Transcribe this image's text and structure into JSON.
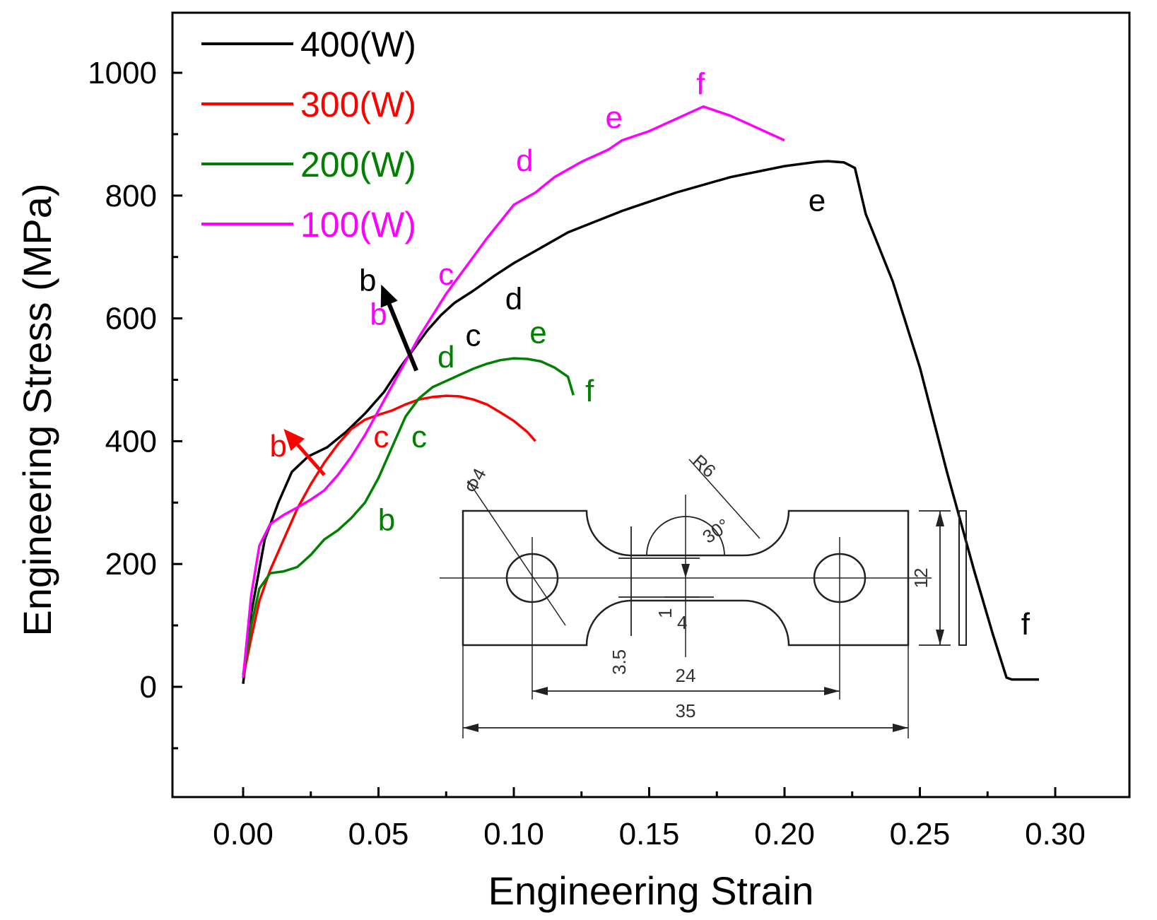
{
  "chart_data": {
    "type": "line",
    "title": "",
    "xlabel": "Engineering Strain",
    "ylabel": "Engineering Stress (MPa)",
    "xlim": [
      -0.025,
      0.325
    ],
    "ylim": [
      -200,
      1100
    ],
    "xticks": [
      0.0,
      0.05,
      0.1,
      0.15,
      0.2,
      0.25,
      0.3
    ],
    "xtick_labels": [
      "0.00",
      "0.05",
      "0.10",
      "0.15",
      "0.20",
      "0.25",
      "0.30"
    ],
    "yticks": [
      0,
      200,
      400,
      600,
      800,
      1000
    ],
    "ytick_labels": [
      "0",
      "200",
      "400",
      "600",
      "800",
      "1000"
    ],
    "grid": false,
    "legend": {
      "placement": "top-left"
    },
    "series": [
      {
        "name": "400(W)",
        "color": "#000000",
        "x": [
          0.0,
          0.003,
          0.008,
          0.013,
          0.018,
          0.024,
          0.031,
          0.038,
          0.045,
          0.052,
          0.058,
          0.063,
          0.068,
          0.073,
          0.078,
          0.085,
          0.093,
          0.1,
          0.11,
          0.12,
          0.14,
          0.16,
          0.18,
          0.2,
          0.212,
          0.216,
          0.222,
          0.226,
          0.23,
          0.24,
          0.25,
          0.26,
          0.27,
          0.277,
          0.282,
          0.284,
          0.29,
          0.294
        ],
        "y": [
          5,
          120,
          240,
          300,
          350,
          375,
          390,
          415,
          445,
          480,
          520,
          550,
          580,
          605,
          625,
          645,
          670,
          690,
          715,
          740,
          775,
          805,
          830,
          848,
          855,
          856,
          854,
          845,
          770,
          660,
          520,
          350,
          190,
          85,
          15,
          12,
          12,
          12
        ]
      },
      {
        "name": "300(W)",
        "color": "#ff0000",
        "x": [
          0.0,
          0.003,
          0.006,
          0.01,
          0.015,
          0.02,
          0.025,
          0.03,
          0.035,
          0.04,
          0.045,
          0.05,
          0.055,
          0.06,
          0.065,
          0.07,
          0.075,
          0.08,
          0.085,
          0.09,
          0.095,
          0.1,
          0.105,
          0.108
        ],
        "y": [
          15,
          80,
          140,
          190,
          240,
          290,
          330,
          365,
          395,
          420,
          435,
          443,
          450,
          460,
          468,
          472,
          474,
          473,
          468,
          460,
          447,
          433,
          415,
          400
        ]
      },
      {
        "name": "200(W)",
        "color": "#008000",
        "x": [
          0.0,
          0.003,
          0.006,
          0.01,
          0.015,
          0.02,
          0.025,
          0.03,
          0.035,
          0.04,
          0.045,
          0.05,
          0.055,
          0.06,
          0.065,
          0.07,
          0.075,
          0.08,
          0.085,
          0.09,
          0.095,
          0.1,
          0.105,
          0.11,
          0.115,
          0.12,
          0.122
        ],
        "y": [
          20,
          100,
          160,
          185,
          188,
          195,
          215,
          240,
          255,
          275,
          300,
          340,
          390,
          440,
          470,
          488,
          498,
          508,
          518,
          526,
          532,
          535,
          534,
          530,
          520,
          505,
          475
        ]
      },
      {
        "name": "100(W)",
        "color": "#ff00ff",
        "x": [
          0.0,
          0.003,
          0.006,
          0.01,
          0.015,
          0.02,
          0.025,
          0.03,
          0.035,
          0.04,
          0.045,
          0.05,
          0.055,
          0.06,
          0.065,
          0.07,
          0.075,
          0.08,
          0.09,
          0.1,
          0.108,
          0.115,
          0.125,
          0.135,
          0.14,
          0.15,
          0.16,
          0.17,
          0.18,
          0.19,
          0.2
        ],
        "y": [
          15,
          150,
          230,
          265,
          280,
          292,
          305,
          320,
          345,
          375,
          410,
          450,
          490,
          530,
          570,
          605,
          640,
          670,
          730,
          785,
          805,
          830,
          855,
          875,
          890,
          905,
          925,
          945,
          930,
          910,
          890
        ]
      }
    ],
    "annotations": [
      {
        "text": "b",
        "x": 0.046,
        "y": 645,
        "color": "#000000"
      },
      {
        "text": "c",
        "x": 0.085,
        "y": 555,
        "color": "#000000"
      },
      {
        "text": "d",
        "x": 0.1,
        "y": 615,
        "color": "#000000"
      },
      {
        "text": "e",
        "x": 0.212,
        "y": 775,
        "color": "#000000"
      },
      {
        "text": "f",
        "x": 0.289,
        "y": 85,
        "color": "#000000"
      },
      {
        "text": "b",
        "x": 0.013,
        "y": 375,
        "color": "#ff0000"
      },
      {
        "text": "c",
        "x": 0.051,
        "y": 390,
        "color": "#ff0000"
      },
      {
        "text": "b",
        "x": 0.053,
        "y": 255,
        "color": "#008000"
      },
      {
        "text": "c",
        "x": 0.065,
        "y": 390,
        "color": "#008000"
      },
      {
        "text": "d",
        "x": 0.075,
        "y": 520,
        "color": "#008000"
      },
      {
        "text": "e",
        "x": 0.109,
        "y": 560,
        "color": "#008000"
      },
      {
        "text": "f",
        "x": 0.128,
        "y": 465,
        "color": "#008000"
      },
      {
        "text": "b",
        "x": 0.05,
        "y": 590,
        "color": "#ff00ff"
      },
      {
        "text": "c",
        "x": 0.075,
        "y": 655,
        "color": "#ff00ff"
      },
      {
        "text": "d",
        "x": 0.104,
        "y": 840,
        "color": "#ff00ff"
      },
      {
        "text": "e",
        "x": 0.137,
        "y": 910,
        "color": "#ff00ff"
      },
      {
        "text": "f",
        "x": 0.169,
        "y": 965,
        "color": "#ff00ff"
      }
    ],
    "inset": {
      "type": "specimen-drawing",
      "labels": [
        "Φ4",
        "R6",
        "30°",
        "1",
        "4",
        "3.5",
        "24",
        "35",
        "12"
      ]
    }
  }
}
